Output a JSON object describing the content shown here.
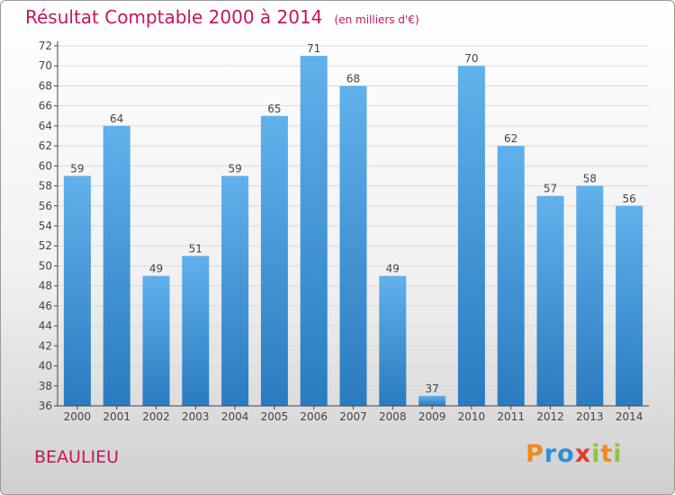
{
  "title": "Résultat Comptable 2000 à 2014",
  "subtitle": "(en milliers d'€)",
  "town": "BEAULIEU",
  "logo": {
    "text": "Proxiti",
    "letters": [
      {
        "ch": "P",
        "color": "#f08a1c"
      },
      {
        "ch": "r",
        "color": "#2f8fd8"
      },
      {
        "ch": "o",
        "color": "#2f8fd8"
      },
      {
        "ch": "x",
        "color": "#e23b2e"
      },
      {
        "ch": "i",
        "color": "#8cc63f"
      },
      {
        "ch": "t",
        "color": "#f08a1c"
      },
      {
        "ch": "i",
        "color": "#8cc63f"
      }
    ]
  },
  "colors": {
    "bar_top": "#61b1ec",
    "bar_bottom": "#2a7bc0",
    "title": "#c2185b",
    "axis": "#444444"
  },
  "chart_data": {
    "type": "bar",
    "categories": [
      "2000",
      "2001",
      "2002",
      "2003",
      "2004",
      "2005",
      "2006",
      "2007",
      "2008",
      "2009",
      "2010",
      "2011",
      "2012",
      "2013",
      "2014"
    ],
    "values": [
      59,
      64,
      49,
      51,
      59,
      65,
      71,
      68,
      49,
      37,
      70,
      62,
      57,
      58,
      56
    ],
    "ylim": [
      36,
      72
    ],
    "yticks": [
      36,
      38,
      40,
      42,
      44,
      46,
      48,
      50,
      52,
      54,
      56,
      58,
      60,
      62,
      64,
      66,
      68,
      70,
      72
    ],
    "grid": true,
    "data_labels": true
  }
}
